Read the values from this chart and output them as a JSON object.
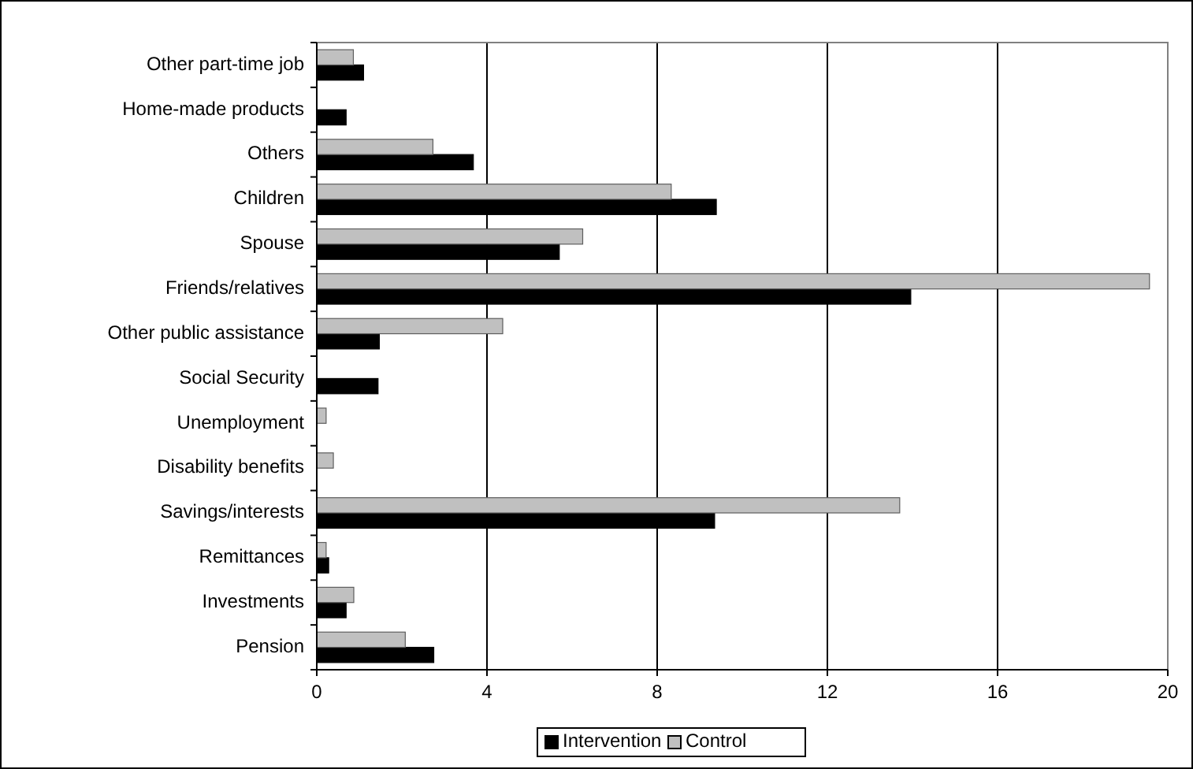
{
  "chart_data": {
    "type": "bar",
    "orientation": "horizontal",
    "categories": [
      "Other part-time job",
      "Home-made products",
      "Others",
      "Children",
      "Spouse",
      "Friends/relatives",
      "Other public assistance",
      "Social Security",
      "Unemployment",
      "Disability benefits",
      "Savings/interests",
      "Remittances",
      "Investments",
      "Pension"
    ],
    "series": [
      {
        "name": "Intervention",
        "color": "#000000",
        "values": [
          1.1,
          0.69,
          3.68,
          9.39,
          5.7,
          13.96,
          1.47,
          1.44,
          null,
          null,
          9.35,
          0.28,
          0.69,
          2.75
        ]
      },
      {
        "name": "Control",
        "color": "#c0c0c0",
        "values": [
          0.86,
          null,
          2.73,
          8.33,
          6.25,
          19.57,
          4.37,
          null,
          0.22,
          0.39,
          13.7,
          0.22,
          0.87,
          2.08
        ]
      }
    ],
    "xlim": [
      0,
      20
    ],
    "xticks": [
      0,
      4,
      8,
      12,
      16,
      20
    ],
    "grid": "x",
    "legend": "bottom"
  }
}
